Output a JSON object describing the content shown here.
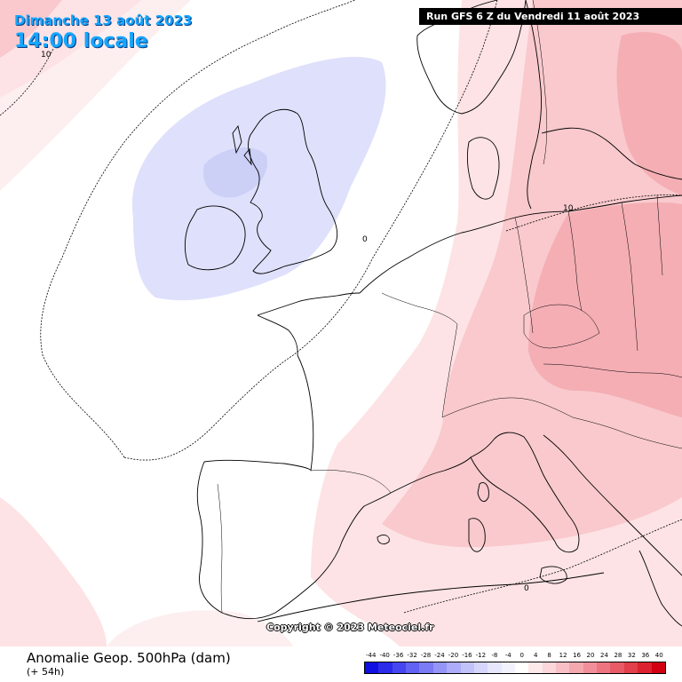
{
  "header": {
    "date": "Dimanche 13 août 2023",
    "time": "14:00 locale",
    "run": "Run GFS 6 Z du Vendredi 11 août 2023"
  },
  "copyright": "Copyright © 2023 Meteociel.fr",
  "footer": {
    "title": "Anomalie Geop. 500hPa (dam)",
    "subtitle": "(+ 54h)"
  },
  "contour_labels": [
    "10",
    "0",
    "10",
    "0"
  ],
  "legend": {
    "ticks": [
      "-44",
      "-40",
      "-36",
      "-32",
      "-28",
      "-24",
      "-20",
      "-16",
      "-12",
      "-8",
      "-4",
      "0",
      "4",
      "8",
      "12",
      "16",
      "20",
      "24",
      "28",
      "32",
      "36",
      "40"
    ],
    "colors": [
      "#1010e0",
      "#2b2bea",
      "#4646f0",
      "#6262f4",
      "#7b7bf6",
      "#9595f8",
      "#acacfa",
      "#c2c2fb",
      "#d6d6fc",
      "#e6e6fd",
      "#f2f2fe",
      "#ffffff",
      "#fde8ea",
      "#fbd6da",
      "#f8c0c6",
      "#f4a8b0",
      "#f08f99",
      "#ec7580",
      "#e75a66",
      "#e23e4b",
      "#dc2230",
      "#d20010"
    ]
  },
  "colors": {
    "anomaly_blue": "#dfe0fb",
    "anomaly_blue_core": "#cccff6",
    "anomaly_pink_light": "#fde3e5",
    "anomaly_pink": "#f9c9cd",
    "anomaly_pink_strong": "#f4aeb4",
    "title_blue": "#14a6ff"
  }
}
